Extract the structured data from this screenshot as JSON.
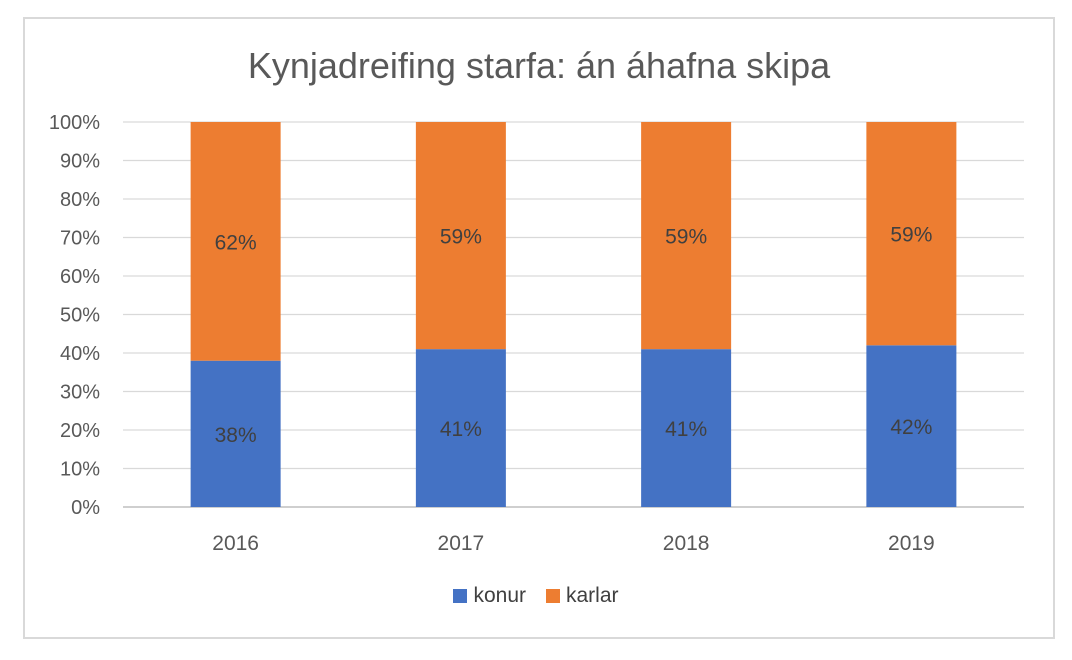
{
  "chart_data": {
    "type": "bar",
    "stacked": true,
    "title": "Kynjadreifing starfa: án áhafna skipa",
    "categories": [
      "2016",
      "2017",
      "2018",
      "2019"
    ],
    "series": [
      {
        "name": "konur",
        "color": "#4472c4",
        "values": [
          38,
          41,
          41,
          42
        ],
        "labels": [
          "38%",
          "41%",
          "41%",
          "42%"
        ]
      },
      {
        "name": "karlar",
        "color": "#ed7d31",
        "values": [
          62,
          59,
          59,
          59
        ],
        "labels": [
          "62%",
          "59%",
          "59%",
          "59%"
        ]
      }
    ],
    "y_ticks": [
      "0%",
      "10%",
      "20%",
      "30%",
      "40%",
      "50%",
      "60%",
      "70%",
      "80%",
      "90%",
      "100%"
    ],
    "ylim": [
      0,
      100
    ],
    "grid": true,
    "legend_position": "bottom"
  }
}
